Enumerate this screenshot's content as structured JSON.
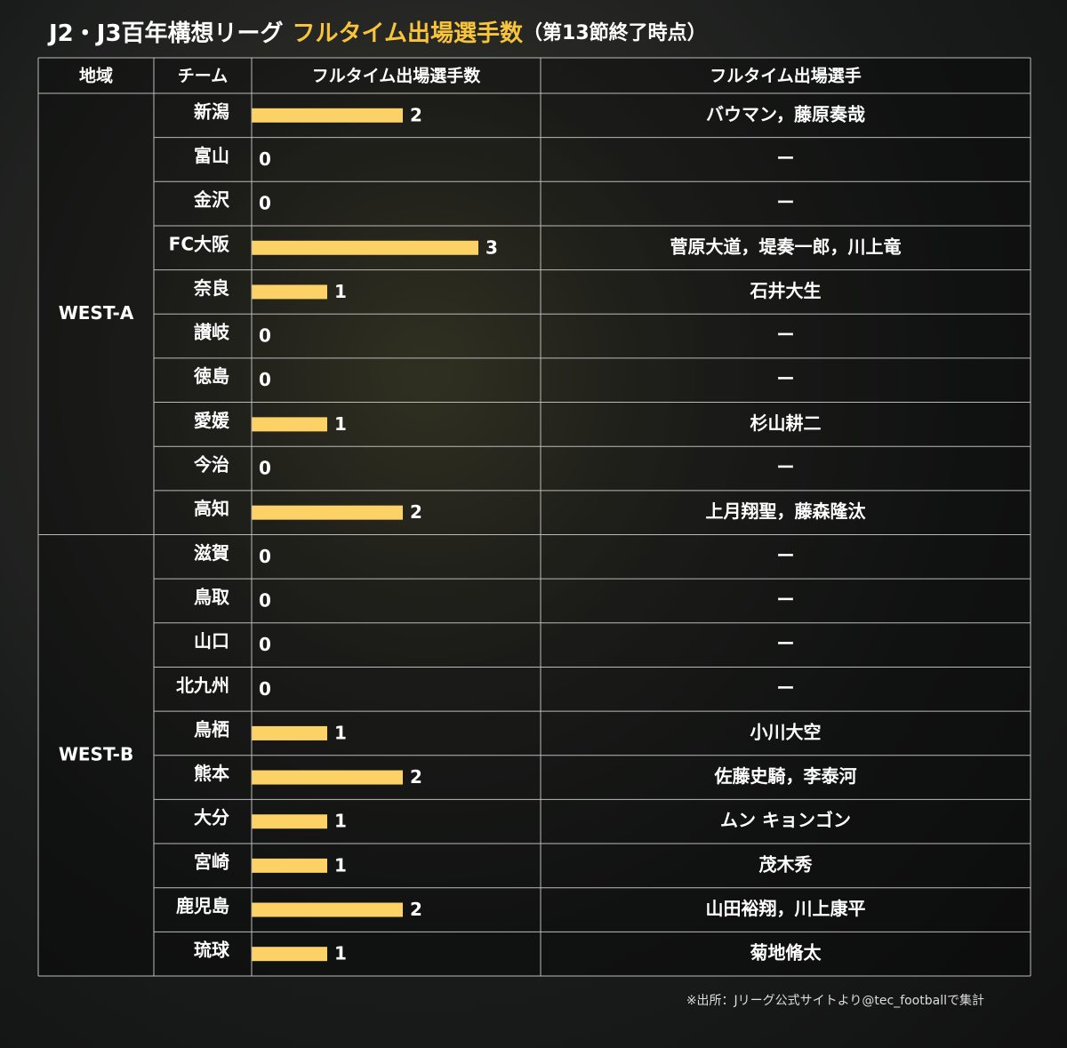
{
  "header": {
    "title": "J2・J3百年構想リーグ",
    "highlight": "フルタイム出場選手数",
    "note": "（第13節終了時点）"
  },
  "table": {
    "columns": [
      "地域",
      "チーム",
      "フルタイム出場選手数",
      "フルタイム出場選手"
    ],
    "groups": [
      {
        "region": "WEST-A",
        "rows": [
          {
            "team": "新潟",
            "count": 2,
            "players": "バウマン，藤原奏哉"
          },
          {
            "team": "富山",
            "count": 0,
            "players": "ー"
          },
          {
            "team": "金沢",
            "count": 0,
            "players": "ー"
          },
          {
            "team": "FC大阪",
            "count": 3,
            "players": "菅原大道，堤奏一郎，川上竜"
          },
          {
            "team": "奈良",
            "count": 1,
            "players": "石井大生"
          },
          {
            "team": "讃岐",
            "count": 0,
            "players": "ー"
          },
          {
            "team": "徳島",
            "count": 0,
            "players": "ー"
          },
          {
            "team": "愛媛",
            "count": 1,
            "players": "杉山耕二"
          },
          {
            "team": "今治",
            "count": 0,
            "players": "ー"
          },
          {
            "team": "高知",
            "count": 2,
            "players": "上月翔聖，藤森隆汰"
          }
        ]
      },
      {
        "region": "WEST-B",
        "rows": [
          {
            "team": "滋賀",
            "count": 0,
            "players": "ー"
          },
          {
            "team": "鳥取",
            "count": 0,
            "players": "ー"
          },
          {
            "team": "山口",
            "count": 0,
            "players": "ー"
          },
          {
            "team": "北九州",
            "count": 0,
            "players": "ー"
          },
          {
            "team": "鳥栖",
            "count": 1,
            "players": "小川大空"
          },
          {
            "team": "熊本",
            "count": 2,
            "players": "佐藤史騎，李泰河"
          },
          {
            "team": "大分",
            "count": 1,
            "players": "ムン キョンゴン"
          },
          {
            "team": "宮崎",
            "count": 1,
            "players": "茂木秀"
          },
          {
            "team": "鹿児島",
            "count": 2,
            "players": "山田裕翔，川上康平"
          },
          {
            "team": "琉球",
            "count": 1,
            "players": "菊地脩太"
          }
        ]
      }
    ]
  },
  "footer": {
    "source": "※出所：Jリーグ公式サイトより@tec_footballで集計"
  }
}
